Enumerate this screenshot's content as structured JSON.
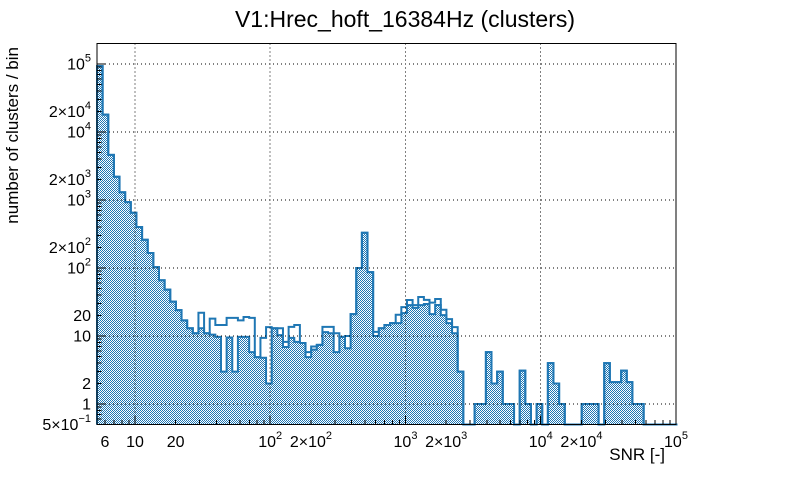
{
  "chart_data": {
    "type": "bar",
    "subtype": "step-histogram-log-log",
    "title": "V1:Hrec_hoft_16384Hz (clusters)",
    "xlabel": "SNR [-]",
    "ylabel": "number of clusters / bin",
    "xscale": "log",
    "yscale": "log",
    "xlim": [
      5.24,
      100000
    ],
    "ylim": [
      0.5,
      200000
    ],
    "grid": {
      "style": "dotted",
      "x_values": [
        10,
        100,
        1000,
        10000
      ],
      "y_values": [
        1,
        10,
        100,
        1000,
        10000,
        100000
      ]
    },
    "binning": {
      "mode": "log-uniform",
      "start": 5.24,
      "bins_per_decade": 24,
      "n_bins": 103
    },
    "series": [
      {
        "name": "clusters (hatched fill)",
        "style": "hatch-fill",
        "values": [
          93000,
          18000,
          4600,
          2200,
          1300,
          930,
          650,
          400,
          260,
          166,
          103,
          66,
          48,
          32,
          24,
          17,
          13,
          11,
          13,
          11,
          10.5,
          9.7,
          3,
          9.5,
          3,
          9.7,
          9.7,
          5.8,
          4.9,
          4.8,
          2,
          13,
          10.3,
          6.9,
          9.4,
          8.2,
          7.9,
          4.9,
          6.3,
          7.4,
          11.4,
          11,
          5.8,
          9.7,
          6.6,
          21,
          100,
          330,
          87,
          10,
          13,
          14.5,
          15.5,
          15.5,
          21.7,
          28.5,
          25.9,
          28.5,
          29.5,
          21,
          28.6,
          20.3,
          15.5,
          11,
          3,
          0,
          0,
          1,
          1,
          5.8,
          2,
          3,
          1,
          1,
          0,
          3.1,
          1,
          0,
          1,
          0,
          4,
          2,
          1,
          0,
          0,
          0,
          1,
          1,
          1,
          0,
          4,
          2.1,
          2.1,
          3.1,
          2.1,
          1,
          1,
          0,
          0,
          0,
          0,
          0,
          0
        ]
      },
      {
        "name": "clusters (outline)",
        "style": "step-line",
        "values": [
          93000,
          18000,
          4600,
          2200,
          1300,
          930,
          650,
          400,
          260,
          166,
          103,
          66,
          48,
          32,
          24,
          17,
          13,
          11,
          22,
          11,
          18,
          14.5,
          14.5,
          18.5,
          18.5,
          17,
          19,
          18.5,
          4.9,
          9.4,
          13.5,
          13,
          13,
          8.2,
          13.6,
          14.5,
          7.9,
          5.8,
          7,
          7.4,
          13.6,
          13.6,
          11,
          9.7,
          10,
          21,
          100,
          330,
          87,
          11.5,
          13,
          14.5,
          15.5,
          20.5,
          26.6,
          33.8,
          28.5,
          37.5,
          34,
          31,
          35,
          24.3,
          17.7,
          13.5,
          3,
          0,
          0,
          1,
          1,
          5.8,
          2,
          3,
          1,
          1,
          0,
          3.1,
          1,
          0,
          1,
          0,
          4,
          2,
          1,
          0,
          0,
          0,
          1,
          1,
          1,
          0,
          4,
          2.1,
          2.1,
          3.1,
          2.1,
          1,
          1,
          0,
          0,
          0,
          0,
          0,
          0
        ]
      }
    ],
    "x_ticks": [
      {
        "v": 6,
        "label": "6"
      },
      7,
      8,
      9,
      {
        "v": 10,
        "label": "10"
      },
      {
        "v": 20,
        "label": "20"
      },
      30,
      40,
      50,
      60,
      70,
      80,
      90,
      {
        "v": 100,
        "label": "10^{2}"
      },
      {
        "v": 200,
        "label": "2×10^{2}"
      },
      300,
      400,
      500,
      600,
      700,
      800,
      900,
      {
        "v": 1000,
        "label": "10^{3}"
      },
      {
        "v": 2000,
        "label": "2×10^{3}"
      },
      3000,
      4000,
      5000,
      6000,
      7000,
      8000,
      9000,
      {
        "v": 10000,
        "label": "10^{4}"
      },
      {
        "v": 20000,
        "label": "2×10^{4}"
      },
      30000,
      40000,
      50000,
      60000,
      70000,
      80000,
      90000,
      {
        "v": 100000,
        "label": "10^{5}"
      }
    ],
    "y_ticks": [
      {
        "v": 0.5,
        "label": "5×10^{−1}"
      },
      0.6,
      0.7,
      0.8,
      0.9,
      {
        "v": 1,
        "label": "1"
      },
      {
        "v": 2,
        "label": "2"
      },
      3,
      4,
      5,
      6,
      7,
      8,
      9,
      {
        "v": 10,
        "label": "10"
      },
      {
        "v": 20,
        "label": "20"
      },
      30,
      40,
      50,
      60,
      70,
      80,
      90,
      {
        "v": 100,
        "label": "10^{2}"
      },
      {
        "v": 200,
        "label": "2×10^{2}"
      },
      300,
      400,
      500,
      600,
      700,
      800,
      900,
      {
        "v": 1000,
        "label": "10^{3}"
      },
      {
        "v": 2000,
        "label": "2×10^{3}"
      },
      3000,
      4000,
      5000,
      6000,
      7000,
      8000,
      9000,
      {
        "v": 10000,
        "label": "10^{4}"
      },
      {
        "v": 20000,
        "label": "2×10^{4}"
      },
      30000,
      40000,
      50000,
      60000,
      70000,
      80000,
      90000,
      {
        "v": 100000,
        "label": "10^{5}"
      }
    ],
    "legend": null,
    "colors": {
      "histogram": "#1f77b4",
      "axis": "#000000",
      "grid": "#000000",
      "background": "#ffffff"
    }
  }
}
